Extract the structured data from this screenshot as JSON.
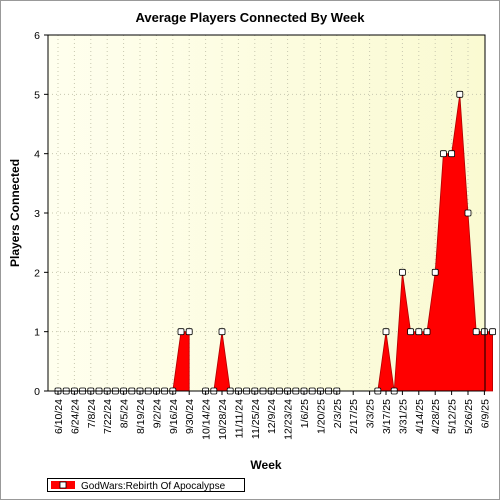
{
  "chart_data": {
    "type": "area",
    "title": "Average Players Connected By Week",
    "xlabel": "Week",
    "ylabel": "Players Connected",
    "ylim": [
      0,
      6
    ],
    "y_ticks": [
      "0",
      "1",
      "2",
      "3",
      "4",
      "5",
      "6"
    ],
    "x_tick_labels": [
      "6/10/24",
      "6/24/24",
      "7/8/24",
      "7/22/24",
      "8/5/24",
      "8/19/24",
      "9/2/24",
      "9/16/24",
      "9/30/24",
      "10/14/24",
      "10/28/24",
      "11/11/24",
      "11/25/24",
      "12/9/24",
      "12/23/24",
      "1/6/25",
      "1/20/25",
      "2/3/25",
      "2/17/25",
      "3/3/25",
      "3/17/25",
      "3/31/25",
      "4/14/25",
      "4/28/25",
      "5/12/25",
      "5/26/25",
      "6/9/25"
    ],
    "x": [
      "6/10/24",
      "6/17/24",
      "6/24/24",
      "7/1/24",
      "7/8/24",
      "7/15/24",
      "7/22/24",
      "7/29/24",
      "8/5/24",
      "8/12/24",
      "8/19/24",
      "8/26/24",
      "9/2/24",
      "9/9/24",
      "9/16/24",
      "9/23/24",
      "9/30/24",
      "10/7/24",
      "10/14/24",
      "10/21/24",
      "10/28/24",
      "11/4/24",
      "11/11/24",
      "11/18/24",
      "11/25/24",
      "12/2/24",
      "12/9/24",
      "12/16/24",
      "12/23/24",
      "12/30/24",
      "1/6/25",
      "1/13/25",
      "1/20/25",
      "1/27/25",
      "2/3/25",
      "2/10/25",
      "2/17/25",
      "2/24/25",
      "3/3/25",
      "3/10/25",
      "3/17/25",
      "3/24/25",
      "3/31/25",
      "4/7/25",
      "4/14/25",
      "4/21/25",
      "4/28/25",
      "5/5/25",
      "5/12/25",
      "5/19/25",
      "5/26/25",
      "6/2/25",
      "6/9/25",
      "6/16/25"
    ],
    "series": [
      {
        "name": "GodWars:Rebirth Of Apocalypse",
        "color": "#ff0000",
        "values": [
          0,
          0,
          0,
          0,
          0,
          0,
          0,
          0,
          0,
          0,
          0,
          0,
          0,
          0,
          0,
          1,
          1,
          null,
          0,
          0,
          1,
          0,
          0,
          0,
          0,
          0,
          0,
          0,
          0,
          0,
          0,
          0,
          0,
          0,
          0,
          null,
          null,
          null,
          null,
          0,
          1,
          0,
          2,
          1,
          1,
          1,
          2,
          4,
          4,
          5,
          3,
          1,
          1,
          1
        ]
      }
    ],
    "grid": true,
    "plot_background": [
      "#ffffee",
      "#fafad2"
    ],
    "legend_position": "bottom-left"
  }
}
